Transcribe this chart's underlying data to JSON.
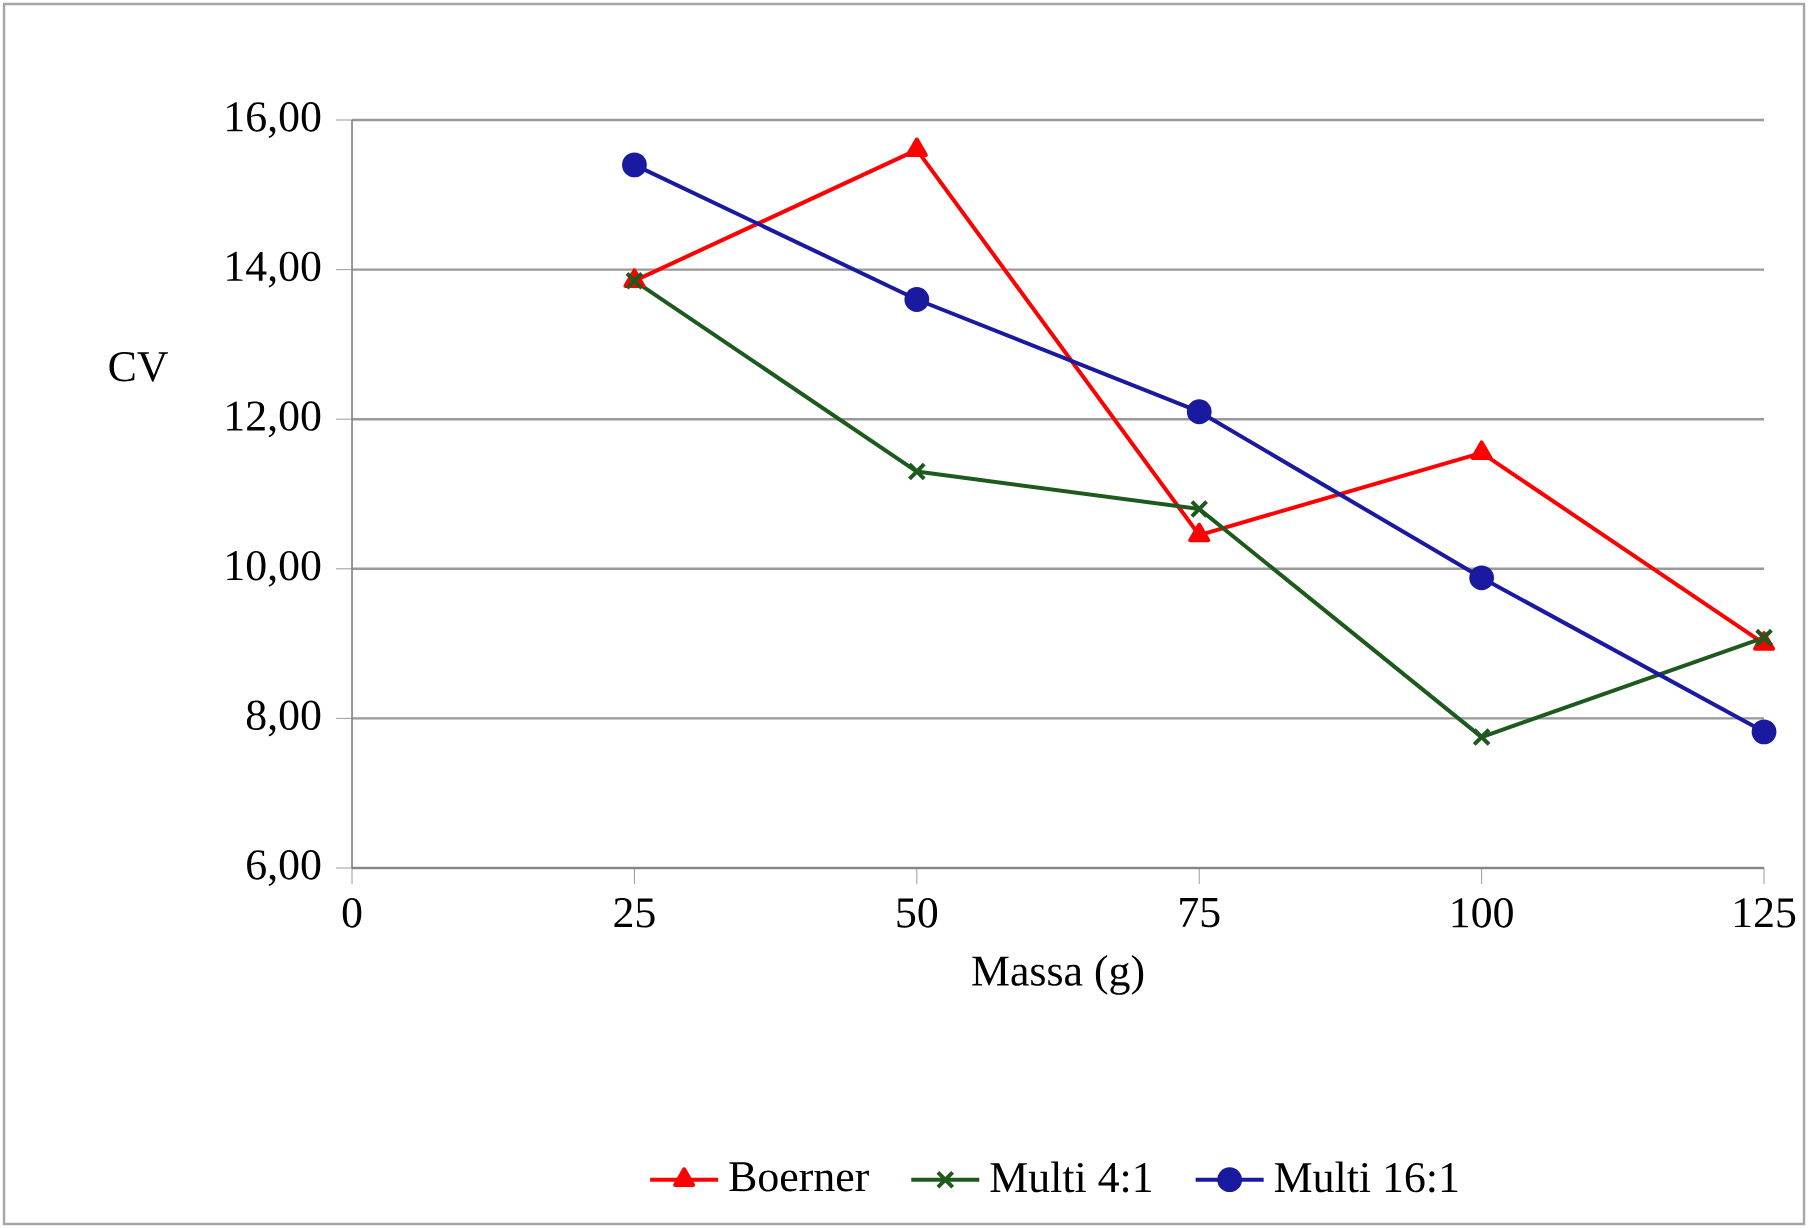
{
  "chart_data": {
    "type": "line",
    "xlabel": "Massa (g)",
    "ylabel": "CV",
    "x": [
      25,
      50,
      75,
      100,
      125
    ],
    "series": [
      {
        "name": "Boerner",
        "color": "#ff0000",
        "marker": "triangle",
        "values": [
          13.85,
          15.6,
          10.45,
          11.55,
          9.0
        ]
      },
      {
        "name": "Multi 4:1",
        "color": "#1e5a1e",
        "marker": "cross",
        "values": [
          13.85,
          11.3,
          10.8,
          7.75,
          9.08
        ]
      },
      {
        "name": "Multi 16:1",
        "color": "#1a1aa0",
        "marker": "circle",
        "values": [
          15.4,
          13.6,
          12.1,
          9.88,
          7.82
        ]
      }
    ],
    "xlim": [
      0,
      125
    ],
    "xticks": [
      0,
      25,
      50,
      75,
      100,
      125
    ],
    "ylim": [
      6,
      16
    ],
    "yticks": [
      {
        "value": 6,
        "label": "6,00"
      },
      {
        "value": 8,
        "label": "8,00"
      },
      {
        "value": 10,
        "label": "10,00"
      },
      {
        "value": 12,
        "label": "12,00"
      },
      {
        "value": 14,
        "label": "14,00"
      },
      {
        "value": 16,
        "label": "16,00"
      }
    ],
    "grid": "y",
    "legend": "bottom",
    "line_style": "solid"
  }
}
